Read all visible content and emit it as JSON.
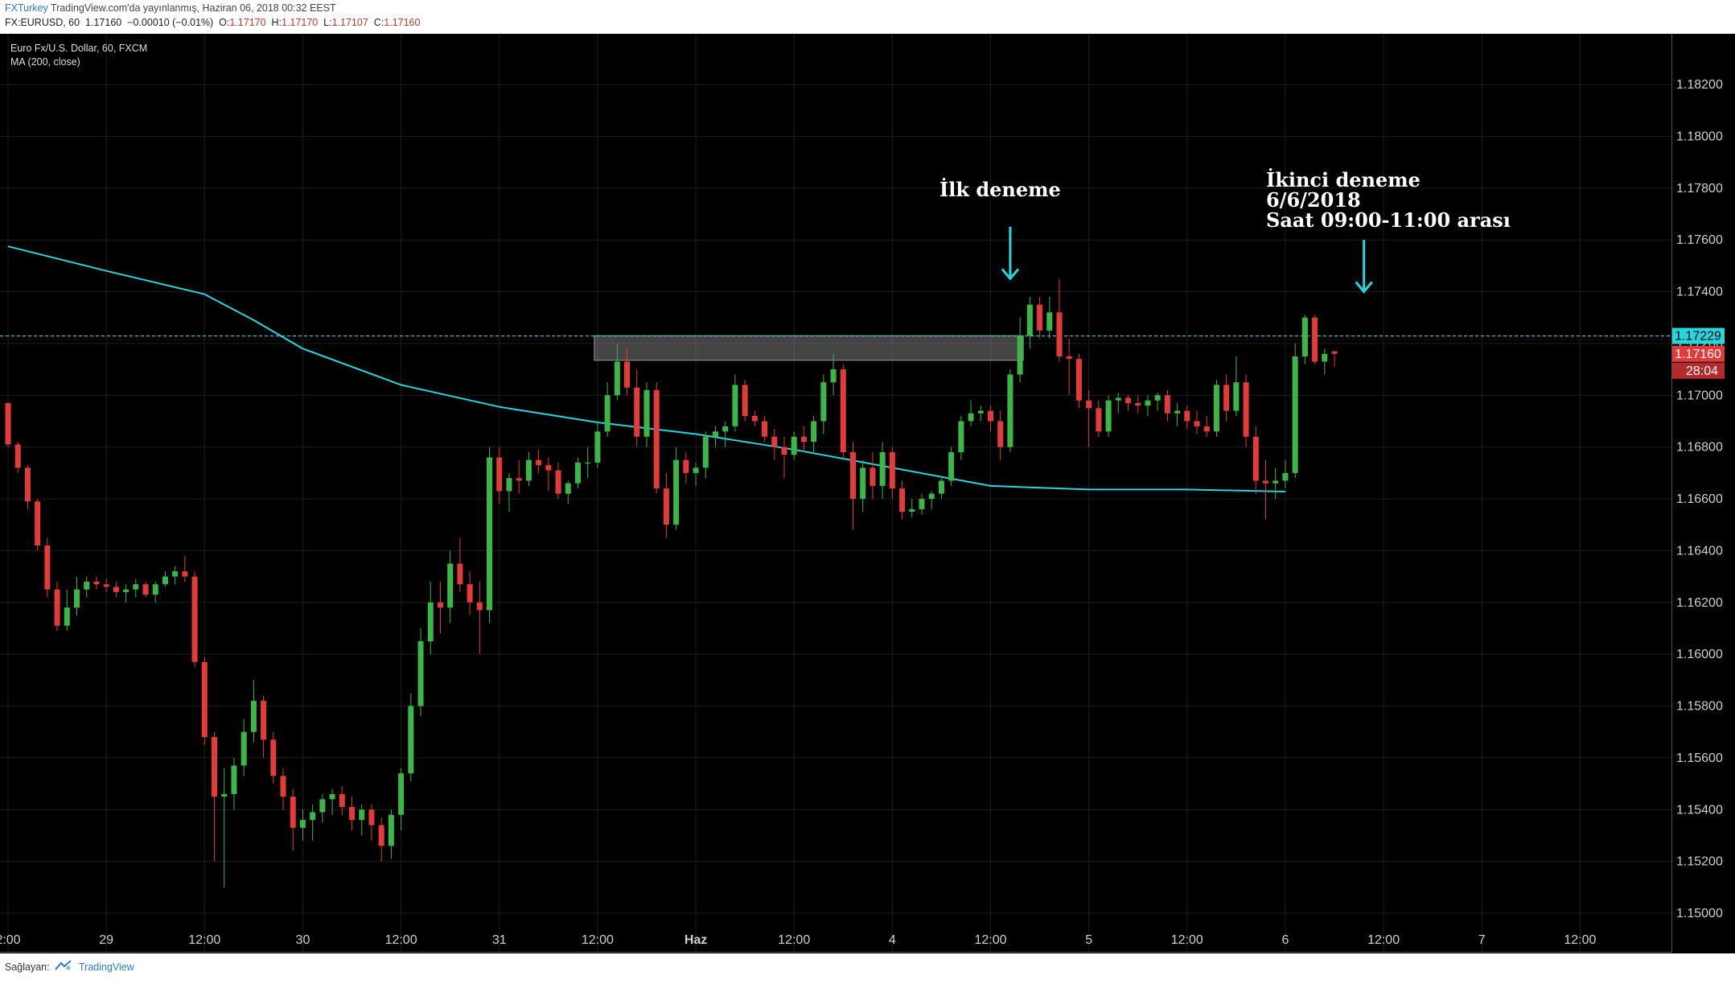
{
  "header": {
    "publisher": "FXTurkey",
    "published_text": " TradingView.com'da yayınlanmış, Haziran 06, 2018 00:32 EEST",
    "symbol": "FX:EURUSD, 60",
    "last": "1.17160",
    "change": "−0.00010 (−0.01%)",
    "o_label": "O:",
    "o_value": "1.17170",
    "h_label": "H:",
    "h_value": "1.17170",
    "l_label": "L:",
    "l_value": "1.17107",
    "c_label": "C:",
    "c_value": "1.17160"
  },
  "legend": {
    "instrument": "Euro Fx/U.S. Dollar, 60, FXCM",
    "indicator": "MA (200, close)"
  },
  "footer": {
    "source_label": "Sağlayan:",
    "brand": "TradingView"
  },
  "colors": {
    "background": "#000000",
    "up": "#3db649",
    "down": "#e33a3a",
    "ma": "#26d6de",
    "current_price": "#e33a3a",
    "dashed_level": "#26d6de",
    "zone": "#777777"
  },
  "chart_data": {
    "type": "candlestick",
    "title": "Euro Fx/U.S. Dollar, 60, FXCM",
    "ylim": [
      1.149,
      1.184
    ],
    "y_ticks": [
      "1.18200",
      "1.18000",
      "1.17800",
      "1.17600",
      "1.17400",
      "1.17200",
      "1.17000",
      "1.16800",
      "1.16600",
      "1.16400",
      "1.16200",
      "1.16000",
      "1.15800",
      "1.15600",
      "1.15400",
      "1.15200",
      "1.15000"
    ],
    "x_ticks": [
      {
        "label": "2:00",
        "i": 0
      },
      {
        "label": "29",
        "i": 10
      },
      {
        "label": "12:00",
        "i": 20
      },
      {
        "label": "30",
        "i": 30
      },
      {
        "label": "12:00",
        "i": 40
      },
      {
        "label": "31",
        "i": 50
      },
      {
        "label": "12:00",
        "i": 60
      },
      {
        "label": "Haz",
        "i": 70
      },
      {
        "label": "12:00",
        "i": 80
      },
      {
        "label": "4",
        "i": 90
      },
      {
        "label": "12:00",
        "i": 100
      },
      {
        "label": "5",
        "i": 110
      },
      {
        "label": "12:00",
        "i": 120
      },
      {
        "label": "6",
        "i": 130
      },
      {
        "label": "12:00",
        "i": 140
      },
      {
        "label": "7",
        "i": 150
      },
      {
        "label": "12:00",
        "i": 160
      }
    ],
    "price_labels": [
      {
        "value": 1.17229,
        "text": "1.17229",
        "style": "level"
      },
      {
        "value": 1.1716,
        "text": "1.17160",
        "style": "last"
      }
    ],
    "countdown": "28:04",
    "horizontal_level": 1.17229,
    "zone": {
      "from_i": 60,
      "to_i": 103,
      "low": 1.17135,
      "high": 1.1723
    },
    "annotations": [
      {
        "lines": [
          "İlk deneme"
        ],
        "arrow_i": 102,
        "arrow_from": 1.1765,
        "arrow_to": 1.1745
      },
      {
        "lines": [
          "İkinci deneme",
          "6/6/2018",
          "Saat 09:00-11:00 arası"
        ],
        "arrow_i": 138,
        "arrow_from": 1.176,
        "arrow_to": 1.174
      }
    ],
    "candles": [
      [
        1.1697,
        1.1697,
        1.168,
        1.1681
      ],
      [
        1.1681,
        1.1682,
        1.167,
        1.1672
      ],
      [
        1.1672,
        1.1673,
        1.1656,
        1.1659
      ],
      [
        1.1659,
        1.166,
        1.164,
        1.1642
      ],
      [
        1.1642,
        1.1645,
        1.1622,
        1.1625
      ],
      [
        1.1625,
        1.1628,
        1.1609,
        1.1611
      ],
      [
        1.1611,
        1.1625,
        1.1609,
        1.1618
      ],
      [
        1.1618,
        1.163,
        1.1615,
        1.1625
      ],
      [
        1.1625,
        1.163,
        1.1622,
        1.1628
      ],
      [
        1.1628,
        1.163,
        1.1625,
        1.1627
      ],
      [
        1.1627,
        1.1629,
        1.1624,
        1.1626
      ],
      [
        1.1626,
        1.1628,
        1.1622,
        1.1624
      ],
      [
        1.1624,
        1.1627,
        1.162,
        1.1625
      ],
      [
        1.1625,
        1.1629,
        1.1622,
        1.1627
      ],
      [
        1.1627,
        1.1628,
        1.1622,
        1.1623
      ],
      [
        1.1623,
        1.1628,
        1.162,
        1.1627
      ],
      [
        1.1627,
        1.1632,
        1.1626,
        1.163
      ],
      [
        1.163,
        1.1634,
        1.1627,
        1.1632
      ],
      [
        1.1632,
        1.1638,
        1.1628,
        1.163
      ],
      [
        1.163,
        1.1632,
        1.1595,
        1.1597
      ],
      [
        1.1597,
        1.1599,
        1.1565,
        1.1568
      ],
      [
        1.1568,
        1.157,
        1.152,
        1.1545
      ],
      [
        1.1545,
        1.1556,
        1.151,
        1.1546
      ],
      [
        1.1546,
        1.156,
        1.154,
        1.1557
      ],
      [
        1.1557,
        1.1575,
        1.1553,
        1.157
      ],
      [
        1.157,
        1.159,
        1.1566,
        1.1582
      ],
      [
        1.1582,
        1.1584,
        1.156,
        1.1567
      ],
      [
        1.1567,
        1.157,
        1.155,
        1.1553
      ],
      [
        1.1553,
        1.1556,
        1.154,
        1.1545
      ],
      [
        1.1545,
        1.1548,
        1.1524,
        1.1533
      ],
      [
        1.1533,
        1.154,
        1.1528,
        1.1536
      ],
      [
        1.1536,
        1.1542,
        1.1528,
        1.1539
      ],
      [
        1.1539,
        1.1546,
        1.1535,
        1.1544
      ],
      [
        1.1544,
        1.1548,
        1.1538,
        1.1546
      ],
      [
        1.1546,
        1.1549,
        1.1538,
        1.1541
      ],
      [
        1.1541,
        1.1545,
        1.1532,
        1.1536
      ],
      [
        1.1536,
        1.1542,
        1.153,
        1.154
      ],
      [
        1.154,
        1.1542,
        1.1528,
        1.1534
      ],
      [
        1.1534,
        1.1537,
        1.152,
        1.1526
      ],
      [
        1.1526,
        1.154,
        1.1521,
        1.1538
      ],
      [
        1.1538,
        1.1556,
        1.1532,
        1.1554
      ],
      [
        1.1554,
        1.1585,
        1.1551,
        1.158
      ],
      [
        1.158,
        1.161,
        1.1576,
        1.1605
      ],
      [
        1.1605,
        1.1628,
        1.16,
        1.162
      ],
      [
        1.162,
        1.1628,
        1.1608,
        1.1618
      ],
      [
        1.1618,
        1.164,
        1.1612,
        1.1635
      ],
      [
        1.1635,
        1.1645,
        1.1624,
        1.1627
      ],
      [
        1.1627,
        1.1632,
        1.1615,
        1.162
      ],
      [
        1.162,
        1.1628,
        1.16,
        1.1617
      ],
      [
        1.1617,
        1.168,
        1.1612,
        1.1676
      ],
      [
        1.1676,
        1.168,
        1.1658,
        1.1663
      ],
      [
        1.1663,
        1.167,
        1.1655,
        1.1668
      ],
      [
        1.1668,
        1.1675,
        1.1662,
        1.1667
      ],
      [
        1.1667,
        1.1678,
        1.1665,
        1.1675
      ],
      [
        1.1675,
        1.1679,
        1.167,
        1.1673
      ],
      [
        1.1673,
        1.1676,
        1.1663,
        1.1671
      ],
      [
        1.1671,
        1.1674,
        1.166,
        1.1662
      ],
      [
        1.1662,
        1.1667,
        1.1658,
        1.1666
      ],
      [
        1.1666,
        1.1676,
        1.1664,
        1.1674
      ],
      [
        1.1674,
        1.168,
        1.1668,
        1.1674
      ],
      [
        1.1674,
        1.169,
        1.1672,
        1.1686
      ],
      [
        1.1686,
        1.1705,
        1.1684,
        1.17
      ],
      [
        1.17,
        1.172,
        1.1698,
        1.1713
      ],
      [
        1.1713,
        1.1718,
        1.17,
        1.1703
      ],
      [
        1.1703,
        1.171,
        1.168,
        1.1684
      ],
      [
        1.1684,
        1.1705,
        1.168,
        1.1702
      ],
      [
        1.1702,
        1.1705,
        1.1662,
        1.1664
      ],
      [
        1.1664,
        1.167,
        1.1645,
        1.165
      ],
      [
        1.165,
        1.168,
        1.1648,
        1.1675
      ],
      [
        1.1675,
        1.1678,
        1.1666,
        1.167
      ],
      [
        1.167,
        1.1674,
        1.1665,
        1.1672
      ],
      [
        1.1672,
        1.1686,
        1.1668,
        1.1684
      ],
      [
        1.1684,
        1.1688,
        1.168,
        1.1686
      ],
      [
        1.1686,
        1.169,
        1.168,
        1.1688
      ],
      [
        1.1688,
        1.1708,
        1.1686,
        1.1704
      ],
      [
        1.1704,
        1.1706,
        1.169,
        1.1692
      ],
      [
        1.1692,
        1.1694,
        1.1688,
        1.169
      ],
      [
        1.169,
        1.1692,
        1.1682,
        1.1684
      ],
      [
        1.1684,
        1.1687,
        1.1675,
        1.168
      ],
      [
        1.168,
        1.1684,
        1.1668,
        1.1677
      ],
      [
        1.1677,
        1.1686,
        1.1675,
        1.1684
      ],
      [
        1.1684,
        1.1688,
        1.1678,
        1.1682
      ],
      [
        1.1682,
        1.1692,
        1.1678,
        1.169
      ],
      [
        1.169,
        1.1708,
        1.1685,
        1.1705
      ],
      [
        1.1705,
        1.1716,
        1.17,
        1.171
      ],
      [
        1.171,
        1.1712,
        1.1675,
        1.1678
      ],
      [
        1.1678,
        1.1682,
        1.1648,
        1.166
      ],
      [
        1.166,
        1.1675,
        1.1655,
        1.1672
      ],
      [
        1.1672,
        1.1678,
        1.166,
        1.1665
      ],
      [
        1.1665,
        1.1682,
        1.166,
        1.1678
      ],
      [
        1.1678,
        1.168,
        1.166,
        1.1664
      ],
      [
        1.1664,
        1.1667,
        1.1652,
        1.1655
      ],
      [
        1.1655,
        1.166,
        1.1653,
        1.1656
      ],
      [
        1.1656,
        1.1662,
        1.1654,
        1.166
      ],
      [
        1.166,
        1.1663,
        1.1656,
        1.1662
      ],
      [
        1.1662,
        1.1668,
        1.166,
        1.1667
      ],
      [
        1.1667,
        1.168,
        1.1665,
        1.1678
      ],
      [
        1.1678,
        1.1692,
        1.1675,
        1.169
      ],
      [
        1.169,
        1.1698,
        1.1688,
        1.1693
      ],
      [
        1.1693,
        1.1696,
        1.169,
        1.1694
      ],
      [
        1.1694,
        1.1696,
        1.1686,
        1.169
      ],
      [
        1.169,
        1.1694,
        1.1675,
        1.168
      ],
      [
        1.168,
        1.171,
        1.1678,
        1.1708
      ],
      [
        1.1708,
        1.173,
        1.1705,
        1.1723
      ],
      [
        1.1723,
        1.1738,
        1.1718,
        1.1735
      ],
      [
        1.1735,
        1.1738,
        1.1722,
        1.1725
      ],
      [
        1.1725,
        1.1738,
        1.1722,
        1.1732
      ],
      [
        1.1732,
        1.1745,
        1.1713,
        1.1715
      ],
      [
        1.1715,
        1.1722,
        1.17,
        1.1714
      ],
      [
        1.1714,
        1.1716,
        1.1695,
        1.1698
      ],
      [
        1.1698,
        1.1702,
        1.168,
        1.1695
      ],
      [
        1.1695,
        1.1698,
        1.1684,
        1.1686
      ],
      [
        1.1686,
        1.17,
        1.1684,
        1.1698
      ],
      [
        1.1698,
        1.1701,
        1.1693,
        1.1699
      ],
      [
        1.1699,
        1.17,
        1.1694,
        1.1697
      ],
      [
        1.1697,
        1.17,
        1.1693,
        1.1696
      ],
      [
        1.1696,
        1.17,
        1.1692,
        1.1698
      ],
      [
        1.1698,
        1.1701,
        1.1694,
        1.17
      ],
      [
        1.17,
        1.1702,
        1.169,
        1.1693
      ],
      [
        1.1693,
        1.1697,
        1.1688,
        1.1694
      ],
      [
        1.1694,
        1.1696,
        1.1687,
        1.169
      ],
      [
        1.169,
        1.1694,
        1.1685,
        1.1688
      ],
      [
        1.1688,
        1.1692,
        1.1684,
        1.1686
      ],
      [
        1.1686,
        1.1706,
        1.1684,
        1.1704
      ],
      [
        1.1704,
        1.1708,
        1.169,
        1.1694
      ],
      [
        1.1694,
        1.1715,
        1.1692,
        1.1705
      ],
      [
        1.1705,
        1.1708,
        1.168,
        1.1684
      ],
      [
        1.1684,
        1.1688,
        1.1662,
        1.1667
      ],
      [
        1.1667,
        1.1675,
        1.1652,
        1.1666
      ],
      [
        1.1666,
        1.1672,
        1.166,
        1.1667
      ],
      [
        1.1667,
        1.1675,
        1.1664,
        1.167
      ],
      [
        1.167,
        1.172,
        1.1668,
        1.1715
      ],
      [
        1.1715,
        1.1731,
        1.1712,
        1.173
      ],
      [
        1.173,
        1.1731,
        1.1712,
        1.1713
      ],
      [
        1.1713,
        1.1718,
        1.1708,
        1.1716
      ],
      [
        1.1717,
        1.1717,
        1.1711,
        1.1716
      ]
    ],
    "ma_200": [
      {
        "i": 0,
        "v": 1.17575
      },
      {
        "i": 10,
        "v": 1.1748
      },
      {
        "i": 20,
        "v": 1.1739
      },
      {
        "i": 25,
        "v": 1.1729
      },
      {
        "i": 30,
        "v": 1.1718
      },
      {
        "i": 40,
        "v": 1.1704
      },
      {
        "i": 50,
        "v": 1.16955
      },
      {
        "i": 60,
        "v": 1.16895
      },
      {
        "i": 70,
        "v": 1.1685
      },
      {
        "i": 80,
        "v": 1.1679
      },
      {
        "i": 90,
        "v": 1.1672
      },
      {
        "i": 100,
        "v": 1.1665
      },
      {
        "i": 110,
        "v": 1.16636
      },
      {
        "i": 120,
        "v": 1.16636
      },
      {
        "i": 130,
        "v": 1.16628
      }
    ]
  }
}
